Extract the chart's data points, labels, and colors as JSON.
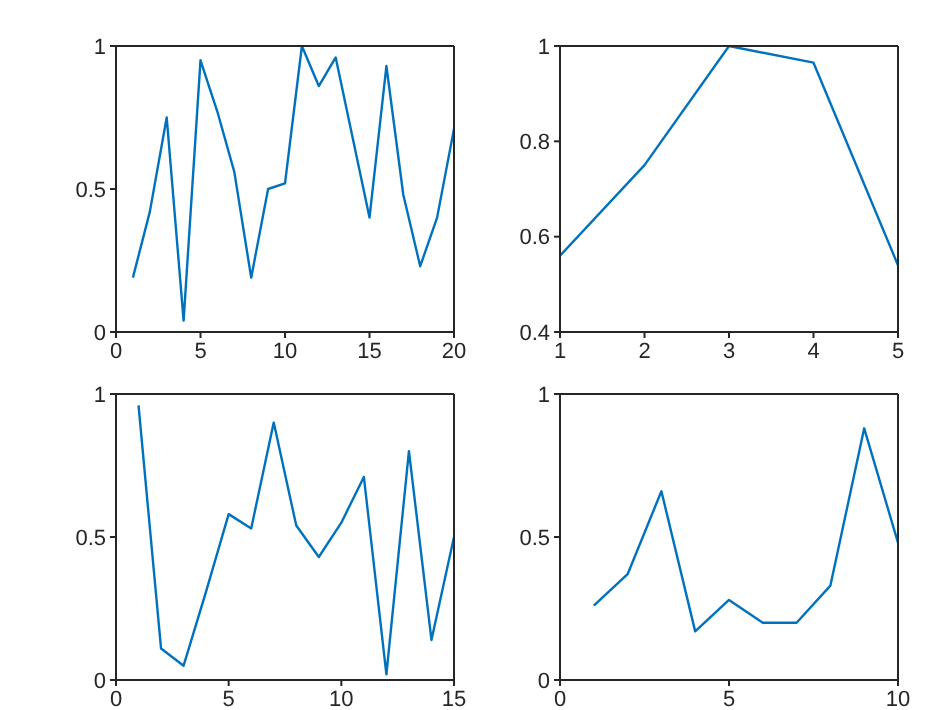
{
  "chart_data": [
    {
      "type": "line",
      "x": [
        1,
        2,
        3,
        4,
        5,
        6,
        7,
        8,
        9,
        10,
        11,
        12,
        13,
        14,
        15,
        16,
        17,
        18,
        19,
        20
      ],
      "values": [
        0.19,
        0.42,
        0.75,
        0.04,
        0.95,
        0.77,
        0.56,
        0.19,
        0.5,
        0.52,
        1.0,
        0.86,
        0.96,
        0.68,
        0.4,
        0.93,
        0.48,
        0.23,
        0.4,
        0.71
      ],
      "color": "#0072bd",
      "xlim": [
        0,
        20
      ],
      "xticks": [
        0,
        5,
        10,
        15,
        20
      ],
      "ylim": [
        0,
        1
      ],
      "yticks": [
        0,
        0.5,
        1
      ]
    },
    {
      "type": "line",
      "x": [
        1,
        2,
        3,
        4,
        5
      ],
      "values": [
        0.56,
        0.75,
        1.0,
        0.965,
        0.54
      ],
      "color": "#0072bd",
      "xlim": [
        1,
        5
      ],
      "xticks": [
        1,
        2,
        3,
        4,
        5
      ],
      "ylim": [
        0.4,
        1
      ],
      "yticks": [
        0.4,
        0.6,
        0.8,
        1
      ]
    },
    {
      "type": "line",
      "x": [
        1,
        2,
        3,
        4,
        5,
        6,
        7,
        8,
        9,
        10,
        11,
        12,
        13,
        14,
        15
      ],
      "values": [
        0.96,
        0.11,
        0.05,
        0.31,
        0.58,
        0.53,
        0.9,
        0.54,
        0.43,
        0.55,
        0.71,
        0.02,
        0.8,
        0.14,
        0.5
      ],
      "color": "#0072bd",
      "xlim": [
        0,
        15
      ],
      "xticks": [
        0,
        5,
        10,
        15
      ],
      "ylim": [
        0,
        1
      ],
      "yticks": [
        0,
        0.5,
        1
      ]
    },
    {
      "type": "line",
      "x": [
        1,
        2,
        3,
        4,
        5,
        6,
        7,
        8,
        9,
        10
      ],
      "values": [
        0.26,
        0.37,
        0.66,
        0.17,
        0.28,
        0.2,
        0.2,
        0.33,
        0.88,
        0.48
      ],
      "color": "#0072bd",
      "xlim": [
        0,
        10
      ],
      "xticks": [
        0,
        5,
        10
      ],
      "ylim": [
        0,
        1
      ],
      "yticks": [
        0,
        0.5,
        1
      ]
    }
  ]
}
